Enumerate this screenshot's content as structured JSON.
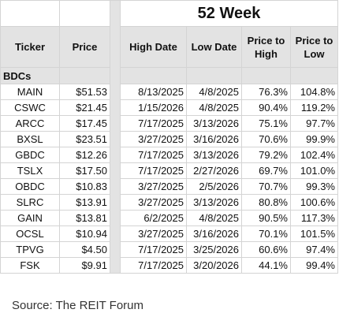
{
  "title": "52 Week",
  "headers": {
    "ticker": "Ticker",
    "price": "Price",
    "high_date": "High Date",
    "low_date": "Low Date",
    "price_to_high": "Price to High",
    "price_to_low": "Price to Low"
  },
  "section_label": "BDCs",
  "rows": [
    {
      "ticker": "MAIN",
      "price": "$51.53",
      "high_date": "8/13/2025",
      "low_date": "4/8/2025",
      "price_to_high": "76.3%",
      "price_to_low": "104.8%"
    },
    {
      "ticker": "CSWC",
      "price": "$21.45",
      "high_date": "1/15/2026",
      "low_date": "4/8/2025",
      "price_to_high": "90.4%",
      "price_to_low": "119.2%"
    },
    {
      "ticker": "ARCC",
      "price": "$17.45",
      "high_date": "7/17/2025",
      "low_date": "3/13/2026",
      "price_to_high": "75.1%",
      "price_to_low": "97.7%"
    },
    {
      "ticker": "BXSL",
      "price": "$23.51",
      "high_date": "3/27/2025",
      "low_date": "3/16/2026",
      "price_to_high": "70.6%",
      "price_to_low": "99.9%"
    },
    {
      "ticker": "GBDC",
      "price": "$12.26",
      "high_date": "7/17/2025",
      "low_date": "3/13/2026",
      "price_to_high": "79.2%",
      "price_to_low": "102.4%"
    },
    {
      "ticker": "TSLX",
      "price": "$17.50",
      "high_date": "7/17/2025",
      "low_date": "2/27/2026",
      "price_to_high": "69.7%",
      "price_to_low": "101.0%"
    },
    {
      "ticker": "OBDC",
      "price": "$10.83",
      "high_date": "3/27/2025",
      "low_date": "2/5/2026",
      "price_to_high": "70.7%",
      "price_to_low": "99.3%"
    },
    {
      "ticker": "SLRC",
      "price": "$13.91",
      "high_date": "3/27/2025",
      "low_date": "3/13/2026",
      "price_to_high": "80.8%",
      "price_to_low": "100.6%"
    },
    {
      "ticker": "GAIN",
      "price": "$13.81",
      "high_date": "6/2/2025",
      "low_date": "4/8/2025",
      "price_to_high": "90.5%",
      "price_to_low": "117.3%"
    },
    {
      "ticker": "OCSL",
      "price": "$10.94",
      "high_date": "3/27/2025",
      "low_date": "3/16/2026",
      "price_to_high": "70.1%",
      "price_to_low": "101.5%"
    },
    {
      "ticker": "TPVG",
      "price": "$4.50",
      "high_date": "7/17/2025",
      "low_date": "3/25/2026",
      "price_to_high": "60.6%",
      "price_to_low": "97.4%"
    },
    {
      "ticker": "FSK",
      "price": "$9.91",
      "high_date": "7/17/2025",
      "low_date": "3/20/2026",
      "price_to_high": "44.1%",
      "price_to_low": "99.4%"
    }
  ],
  "source": "Source: The REIT Forum"
}
